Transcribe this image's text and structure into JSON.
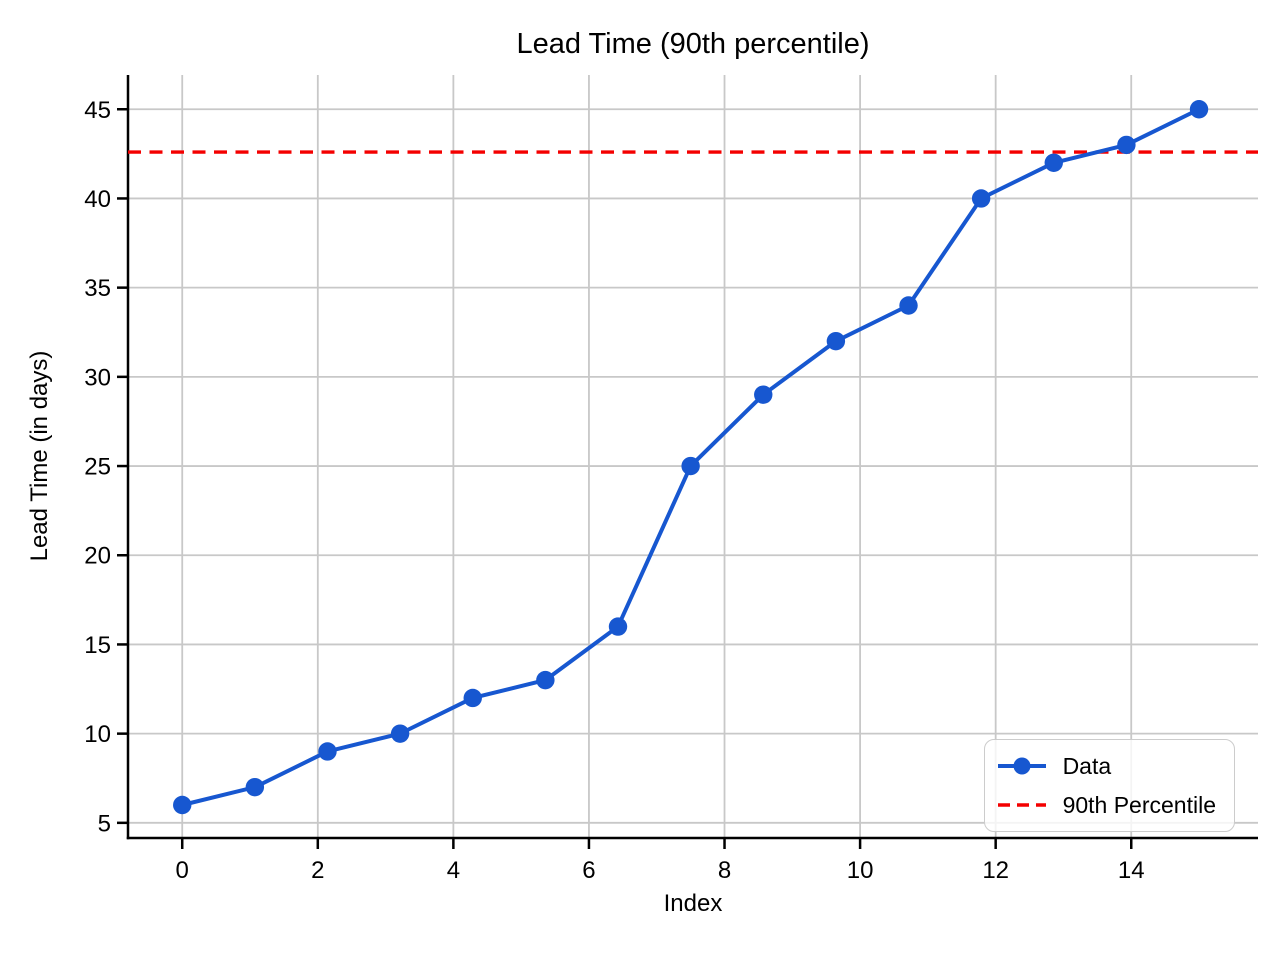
{
  "chart_data": {
    "type": "line",
    "title": "Lead Time (90th percentile)",
    "xlabel": "Index",
    "ylabel": "Lead Time (in days)",
    "series": [
      {
        "name": "Data",
        "x": [
          0,
          1.0714,
          2.1429,
          3.2143,
          4.2857,
          5.3571,
          6.4286,
          7.5,
          8.5714,
          9.6429,
          10.7143,
          11.7857,
          12.8571,
          13.9286,
          15
        ],
        "y": [
          6,
          7,
          9,
          10,
          12,
          13,
          16,
          25,
          29,
          32,
          34,
          40,
          42,
          43,
          45
        ]
      }
    ],
    "percentile": {
      "label": "90th Percentile",
      "value": 42.6,
      "style": "dashed"
    },
    "xticks": [
      0,
      2,
      4,
      6,
      8,
      10,
      12,
      14
    ],
    "yticks": [
      5,
      10,
      15,
      20,
      25,
      30,
      35,
      40,
      45
    ],
    "xlim": [
      -0.8,
      15.87
    ],
    "ylim": [
      4.15,
      46.92
    ],
    "grid": true,
    "legend_position": "lower right",
    "colors": {
      "data_line": "#1757d0",
      "percentile_line": "#f40000",
      "grid": "#c8c8c8",
      "spine": "#000000",
      "tick_text": "#000000"
    }
  }
}
